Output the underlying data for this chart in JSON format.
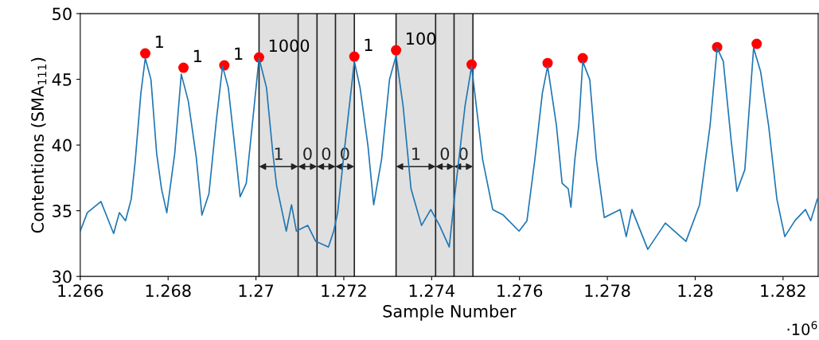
{
  "chart_data": {
    "type": "line",
    "xlabel": "Sample Number",
    "ylabel": "Contentions (SMA$_{111}$)",
    "xlim": [
      1.266,
      1.2828
    ],
    "xticks": [
      1.266,
      1.268,
      1.27,
      1.272,
      1.274,
      1.276,
      1.278,
      1.28,
      1.282
    ],
    "ylim": [
      30,
      50
    ],
    "yticks": [
      30,
      35,
      40,
      45,
      50
    ],
    "grid": false,
    "legend": false,
    "series": [
      {
        "color": "#1f77b4",
        "marker": "none",
        "x": [
          1.266,
          1.26616,
          1.26647,
          1.26676,
          1.26689,
          1.26703,
          1.26716,
          1.26725,
          1.26738,
          1.26748,
          1.26761,
          1.26774,
          1.26785,
          1.26797,
          1.26815,
          1.2683,
          1.26846,
          1.26864,
          1.26877,
          1.26893,
          1.2691,
          1.26924,
          1.26937,
          1.26955,
          1.26964,
          1.26978,
          1.26996,
          1.27007,
          1.27024,
          1.27038,
          1.27047,
          1.27069,
          1.27081,
          1.27092,
          1.27118,
          1.27136,
          1.27165,
          1.27177,
          1.27186,
          1.27201,
          1.27224,
          1.27237,
          1.27255,
          1.27268,
          1.27286,
          1.27304,
          1.27319,
          1.27335,
          1.27353,
          1.27377,
          1.27398,
          1.27418,
          1.2744,
          1.27453,
          1.27476,
          1.27491,
          1.27516,
          1.27539,
          1.27563,
          1.27599,
          1.27617,
          1.27635,
          1.27652,
          1.27664,
          1.27684,
          1.27697,
          1.27711,
          1.27717,
          1.27726,
          1.27735,
          1.27744,
          1.2776,
          1.27775,
          1.27793,
          1.27829,
          1.27843,
          1.27856,
          1.27892,
          1.27932,
          1.27979,
          1.2801,
          1.28034,
          1.2805,
          1.28064,
          1.28082,
          1.28095,
          1.28113,
          1.28133,
          1.28149,
          1.28167,
          1.28186,
          1.28204,
          1.28227,
          1.28251,
          1.28263,
          1.28278
        ],
        "values": [
          33.45,
          34.85,
          35.7,
          33.27,
          34.85,
          34.24,
          35.88,
          38.73,
          43.94,
          46.61,
          44.97,
          39.33,
          36.67,
          34.85,
          39.33,
          45.39,
          43.33,
          39.09,
          34.67,
          36.3,
          41.94,
          46.0,
          44.36,
          38.91,
          36.06,
          37.09,
          42.97,
          46.61,
          44.36,
          39.52,
          36.91,
          33.45,
          35.45,
          33.45,
          33.88,
          32.67,
          32.24,
          33.45,
          34.85,
          39.52,
          46.36,
          44.36,
          39.94,
          35.45,
          38.91,
          44.97,
          46.79,
          42.97,
          36.67,
          33.88,
          35.09,
          33.88,
          32.24,
          36.3,
          42.97,
          46.0,
          38.91,
          35.09,
          34.67,
          33.45,
          34.24,
          38.91,
          43.94,
          46.0,
          41.52,
          37.09,
          36.67,
          35.27,
          38.91,
          41.52,
          46.36,
          44.97,
          38.91,
          34.48,
          35.09,
          33.03,
          35.09,
          32.06,
          34.06,
          32.67,
          35.45,
          41.52,
          47.39,
          46.36,
          40.3,
          36.48,
          38.12,
          47.39,
          45.58,
          41.52,
          35.88,
          33.03,
          34.24,
          35.09,
          34.24,
          35.88
        ]
      },
      {
        "type": "scatter",
        "color": "#ff0000",
        "marker": "circle",
        "x": [
          1.26748,
          1.26835,
          1.26928,
          1.27007,
          1.27224,
          1.27319,
          1.27491,
          1.27664,
          1.27744,
          1.2805,
          1.2814
        ],
        "values": [
          46.97,
          45.88,
          46.06,
          46.67,
          46.73,
          47.21,
          46.12,
          46.24,
          46.61,
          47.45,
          47.7
        ]
      }
    ],
    "bands": [
      {
        "axis": "x",
        "from": 1.27007,
        "to": 1.27096,
        "label": "1",
        "color": "#e0e0e0"
      },
      {
        "axis": "x",
        "from": 1.27096,
        "to": 1.27139,
        "label": "0",
        "color": "#e0e0e0"
      },
      {
        "axis": "x",
        "from": 1.27139,
        "to": 1.27181,
        "label": "0",
        "color": "#e0e0e0"
      },
      {
        "axis": "x",
        "from": 1.27181,
        "to": 1.27224,
        "label": "0",
        "color": "#e0e0e0"
      },
      {
        "axis": "x",
        "from": 1.27319,
        "to": 1.27409,
        "label": "1",
        "color": "#e0e0e0"
      },
      {
        "axis": "x",
        "from": 1.27409,
        "to": 1.27451,
        "label": "0",
        "color": "#e0e0e0"
      },
      {
        "axis": "x",
        "from": 1.27451,
        "to": 1.27494,
        "label": "0",
        "color": "#e0e0e0"
      }
    ],
    "ref_lines": [
      {
        "axis": "x",
        "value": 1.27007,
        "color": "#222222"
      },
      {
        "axis": "x",
        "value": 1.27096,
        "color": "#222222"
      },
      {
        "axis": "x",
        "value": 1.27139,
        "color": "#222222"
      },
      {
        "axis": "x",
        "value": 1.27181,
        "color": "#222222"
      },
      {
        "axis": "x",
        "value": 1.27224,
        "color": "#222222"
      },
      {
        "axis": "x",
        "value": 1.27319,
        "color": "#222222"
      },
      {
        "axis": "x",
        "value": 1.27409,
        "color": "#222222"
      },
      {
        "axis": "x",
        "value": 1.27451,
        "color": "#222222"
      },
      {
        "axis": "x",
        "value": 1.27494,
        "color": "#222222"
      }
    ],
    "annotations": [
      {
        "text": "1",
        "x": 1.26748,
        "y": 46.97
      },
      {
        "text": "1",
        "x": 1.26835,
        "y": 45.88
      },
      {
        "text": "1",
        "x": 1.26928,
        "y": 46.06
      },
      {
        "text": "1000",
        "x": 1.27007,
        "y": 46.67
      },
      {
        "text": "1",
        "x": 1.27224,
        "y": 46.73
      },
      {
        "text": "100",
        "x": 1.27319,
        "y": 47.21
      },
      "·10$^{6}$"
    ]
  }
}
